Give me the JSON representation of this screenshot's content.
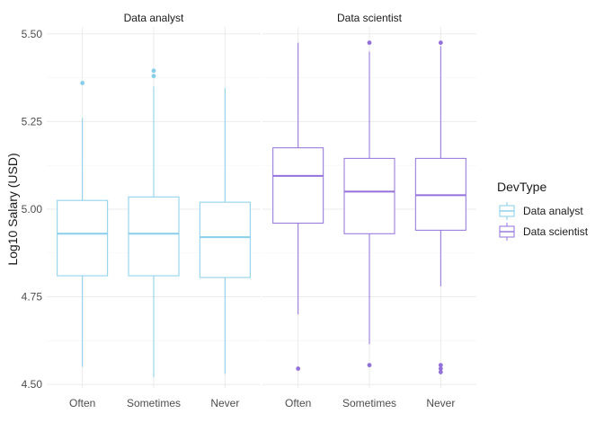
{
  "chart_data": {
    "type": "boxplot",
    "ylabel": "Log10 Salary (USD)",
    "ylim": [
      4.49,
      5.52
    ],
    "yticks": [
      4.5,
      4.75,
      5.0,
      5.25,
      5.5
    ],
    "ytick_labels": [
      "4.50",
      "4.75",
      "5.00",
      "5.25",
      "5.50"
    ],
    "categories": [
      "Often",
      "Sometimes",
      "Never"
    ],
    "grid": true,
    "legend": {
      "title": "DevType",
      "placement": "right",
      "entries": [
        {
          "name": "Data analyst",
          "color": "#87CEEB"
        },
        {
          "name": "Data scientist",
          "color": "#9370DB"
        }
      ]
    },
    "panels": [
      {
        "title": "Data analyst",
        "color": "#87CEEB",
        "boxes": [
          {
            "category": "Often",
            "whisker_low": 4.55,
            "q1": 4.81,
            "median": 4.93,
            "q3": 5.025,
            "whisker_high": 5.26,
            "outliers": [
              5.36
            ]
          },
          {
            "category": "Sometimes",
            "whisker_low": 4.52,
            "q1": 4.81,
            "median": 4.93,
            "q3": 5.035,
            "whisker_high": 5.35,
            "outliers": [
              5.38,
              5.395
            ]
          },
          {
            "category": "Never",
            "whisker_low": 4.53,
            "q1": 4.805,
            "median": 4.92,
            "q3": 5.02,
            "whisker_high": 5.345,
            "outliers": []
          }
        ]
      },
      {
        "title": "Data scientist",
        "color": "#9370DB",
        "boxes": [
          {
            "category": "Often",
            "whisker_low": 4.7,
            "q1": 4.96,
            "median": 5.095,
            "q3": 5.175,
            "whisker_high": 5.475,
            "outliers": [
              4.545
            ]
          },
          {
            "category": "Sometimes",
            "whisker_low": 4.615,
            "q1": 4.93,
            "median": 5.05,
            "q3": 5.145,
            "whisker_high": 5.45,
            "outliers": [
              4.555,
              5.475
            ]
          },
          {
            "category": "Never",
            "whisker_low": 4.78,
            "q1": 4.94,
            "median": 5.04,
            "q3": 5.145,
            "whisker_high": 5.465,
            "outliers": [
              4.535,
              4.545,
              4.555,
              5.475
            ]
          }
        ]
      }
    ]
  }
}
